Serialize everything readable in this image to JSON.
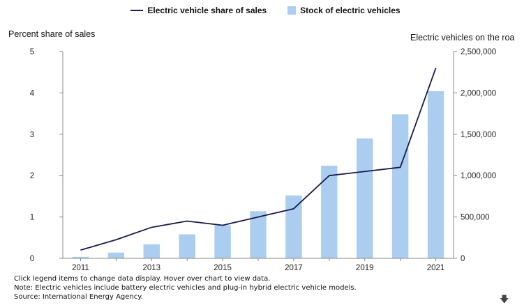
{
  "legend": {
    "line_label": "Electric vehicle share of sales",
    "bar_label": "Stock of electric vehicles"
  },
  "axes": {
    "left_title": "Percent share of sales",
    "right_title": "Electric vehicles on the roa"
  },
  "notes": {
    "line1": "Click legend items to change data display. Hover over chart to view data.",
    "line2": "Note: Electric vehicles include battery electric vehicles and plug-in hybrid electric vehicle models.",
    "line3": "Source: International Energy Agency."
  },
  "download_icon": "download-arrow-icon",
  "colors": {
    "line": "#1a1a4e",
    "bar": "#abcdef",
    "grid": "#e0e0e0",
    "axis": "#888888"
  },
  "chart_data": {
    "type": "bar+line",
    "categories": [
      2011,
      2012,
      2013,
      2014,
      2015,
      2016,
      2017,
      2018,
      2019,
      2020,
      2021
    ],
    "x_tick_labels": [
      "2011",
      "2013",
      "2015",
      "2017",
      "2019",
      "2021"
    ],
    "series": [
      {
        "name": "Stock of electric vehicles",
        "type": "bar",
        "axis": "right",
        "values": [
          18000,
          70000,
          170000,
          290000,
          400000,
          570000,
          760000,
          1120000,
          1450000,
          1740000,
          2020000
        ]
      },
      {
        "name": "Electric vehicle share of sales",
        "type": "line",
        "axis": "left",
        "values": [
          0.2,
          0.45,
          0.75,
          0.9,
          0.8,
          1.0,
          1.2,
          2.0,
          2.1,
          2.2,
          4.6
        ]
      }
    ],
    "left_axis": {
      "title": "Percent share of sales",
      "min": 0,
      "max": 5,
      "ticks": [
        0,
        1,
        2,
        3,
        4,
        5
      ]
    },
    "right_axis": {
      "title": "Electric vehicles on the roa",
      "min": 0,
      "max": 2500000,
      "ticks": [
        0,
        500000,
        1000000,
        1500000,
        2000000,
        2500000
      ],
      "tick_labels": [
        "0",
        "500,000",
        "1,000,000",
        "1,500,000",
        "2,000,000",
        "2,500,000"
      ]
    },
    "grid": false,
    "legend_position": "top-center"
  }
}
